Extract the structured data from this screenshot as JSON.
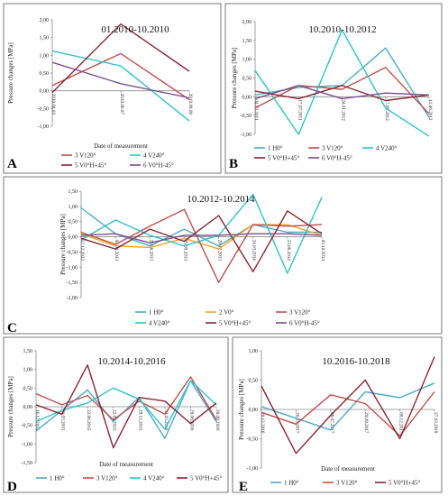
{
  "colors": {
    "H0": "#4bacc6",
    "V0": "#f5a623",
    "V120": "#c0504d",
    "V240": "#2fc3c8",
    "V0H45": "#8b2630",
    "V0Hm45": "#7a4f8c"
  },
  "chart_data": [
    {
      "id": "A",
      "type": "line",
      "letter": "A",
      "title": "01.2010-10.2010",
      "ylabel": "Pressure changes [MPa]",
      "xlabel": "Date of measurement",
      "ylim": [
        -1.0,
        2.0
      ],
      "yticks": [
        "2,00",
        "1,50",
        "1,00",
        "0,50",
        "0,00",
        "-0,50",
        "-1,00"
      ],
      "ytick_values": [
        2.0,
        1.5,
        1.0,
        0.5,
        0.0,
        -0.5,
        -1.0
      ],
      "categories": [
        "2010.04.03",
        "2010.06.07",
        "2010.09.08"
      ],
      "series": [
        {
          "name": "3 V120°",
          "color": "V120",
          "values": [
            0.15,
            1.05,
            -0.25
          ],
          "x": [
            0,
            1,
            2
          ]
        },
        {
          "name": "4 V240°",
          "color": "V240",
          "values": [
            1.12,
            0.7,
            -0.85
          ],
          "x": [
            0,
            1,
            2
          ]
        },
        {
          "name": "5 V0°H+45°",
          "color": "V0H45",
          "values": [
            -0.05,
            1.88,
            0.55
          ],
          "x": [
            0,
            1,
            2
          ]
        },
        {
          "name": "6 V0°H-45°",
          "color": "V0Hm45",
          "values": [
            0.8,
            0.2,
            -0.2
          ],
          "x": [
            0,
            1,
            2
          ]
        }
      ],
      "legend": [
        "3 V120°",
        "4 V240°",
        "5 V0°H+45°",
        "6 V0°H-45°"
      ]
    },
    {
      "id": "B",
      "type": "line",
      "letter": "B",
      "title": "10.2010-10.2012",
      "ylabel": "Pressure changes [MPa]",
      "xlabel": "",
      "ylim": [
        -1.0,
        2.0
      ],
      "yticks": [
        "2,00",
        "1,50",
        "1,00",
        "0,50",
        "0,00",
        "-0,50",
        "-1,00"
      ],
      "ytick_values": [
        2.0,
        1.5,
        1.0,
        0.5,
        0.0,
        -0.5,
        -1.0
      ],
      "categories": [
        "04.03.2011",
        "17.07.2011",
        "24.01.2012",
        "17.05.2012",
        "11.06.2012"
      ],
      "series": [
        {
          "name": "1 H0°",
          "color": "H0",
          "values": [
            0.05,
            0.25,
            0.3,
            1.3,
            -0.55
          ]
        },
        {
          "name": "3 V120°",
          "color": "V120",
          "values": [
            -0.3,
            0.3,
            0.2,
            0.78,
            -0.45
          ]
        },
        {
          "name": "4 V240°",
          "color": "V240",
          "values": [
            0.7,
            -1.0,
            1.78,
            -0.3,
            -1.05
          ]
        },
        {
          "name": "5 V0°H+45°",
          "color": "V0H45",
          "values": [
            0.15,
            -0.05,
            0.3,
            -0.1,
            0.05
          ]
        },
        {
          "name": "6 V0°H-45°",
          "color": "V0Hm45",
          "values": [
            -0.05,
            0.3,
            -0.05,
            0.1,
            0.05
          ]
        }
      ],
      "legend": [
        "1 H0°",
        "3 V120°",
        "4 V240°",
        "5 V0°H+45°",
        "6 V0°H-45°"
      ]
    },
    {
      "id": "C",
      "type": "line",
      "letter": "C",
      "title": "10.2012-10.2014",
      "ylabel": "Pressure changes [MPa]",
      "xlabel": "Date of measurement",
      "ylim": [
        -2.0,
        1.5
      ],
      "yticks": [
        "1,50",
        "1,00",
        "0,50",
        "0,00",
        "-0,50",
        "-1,00",
        "-1,50",
        "-2,00"
      ],
      "ytick_values": [
        1.5,
        1.0,
        0.5,
        0.0,
        -0.5,
        -1.0,
        -1.5,
        -2.0
      ],
      "categories": [
        "12.12.2012",
        "04.04.2013",
        "25.06.2013",
        "25.09.2013",
        "20.12.2013",
        "24.03.2014",
        "23.06.2014",
        "03.10.2014"
      ],
      "series": [
        {
          "name": "1 H0°",
          "color": "H0",
          "values": [
            0.95,
            0.1,
            -0.3,
            0.25,
            -0.3,
            0.4,
            0.15,
            0.15
          ]
        },
        {
          "name": "2 V0°",
          "color": "V0",
          "values": [
            0.1,
            -0.3,
            -0.35,
            -0.05,
            -0.4,
            0.4,
            0.4,
            0.05
          ]
        },
        {
          "name": "3 V120°",
          "color": "V120",
          "values": [
            0.15,
            -0.25,
            0.35,
            0.9,
            -1.5,
            0.4,
            0.35,
            0.4
          ]
        },
        {
          "name": "4 V240°",
          "color": "V240",
          "values": [
            -0.1,
            0.55,
            0.05,
            -0.3,
            0.05,
            1.4,
            -1.2,
            1.3
          ]
        },
        {
          "name": "5 V0°H+45°",
          "color": "V0H45",
          "values": [
            -0.05,
            -0.4,
            0.25,
            -0.15,
            0.7,
            -1.15,
            0.85,
            0.1
          ]
        },
        {
          "name": "6 V0°H-45°",
          "color": "V0Hm45",
          "values": [
            0.05,
            0.1,
            -0.2,
            0.05,
            0.05,
            0.1,
            0.1,
            0.05
          ]
        }
      ],
      "legend": [
        "1 H0°",
        "2 V0°",
        "3 V120°",
        "4 V240°",
        "5 V0°H+45°",
        "6 V0°H-45°"
      ]
    },
    {
      "id": "D",
      "type": "line",
      "letter": "D",
      "title": "10.2014-10.2016",
      "ylabel": "Pressure changes [MPa]",
      "xlabel": "Date of measurement",
      "ylim": [
        -1.5,
        1.5
      ],
      "yticks": [
        "1,50",
        "1,00",
        "0,50",
        "0,00",
        "-0,50",
        "-1,00",
        "-1,50"
      ],
      "ytick_values": [
        1.5,
        1.0,
        0.5,
        0.0,
        -0.5,
        -1.0,
        -1.5
      ],
      "categories": [
        "16.12.2014",
        "26.03.2015",
        "22.06.2015",
        "22.09.2015",
        "29.12.2015",
        "30.03.2016",
        "28.06.2016",
        "28.09.2016"
      ],
      "series": [
        {
          "name": "1 H0°",
          "color": "H0",
          "values": [
            -0.65,
            -0.1,
            0.45,
            -0.4,
            0.25,
            -0.85,
            0.7,
            -0.4
          ]
        },
        {
          "name": "3 V120°",
          "color": "V120",
          "values": [
            0.35,
            0.05,
            0.3,
            -0.35,
            0.15,
            -0.2,
            0.8,
            -0.35
          ]
        },
        {
          "name": "4 V240°",
          "color": "V240",
          "values": [
            -0.4,
            -0.1,
            0.1,
            0.5,
            0.2,
            -0.6,
            0.7,
            0.05
          ]
        },
        {
          "name": "5 V0°H+45°",
          "color": "V0H45",
          "values": [
            0.05,
            -0.2,
            1.12,
            -1.1,
            0.25,
            0.15,
            -0.45,
            0.1
          ]
        }
      ],
      "legend": [
        "1 H0°",
        "3 V120°",
        "4 V240°",
        "5 V0°H+45°"
      ]
    },
    {
      "id": "E",
      "type": "line",
      "letter": "E",
      "title": "10.2016-10.2018",
      "ylabel": "Pressure changes [MPa]",
      "xlabel": "Date of measurement",
      "ylim": [
        -1.0,
        1.0
      ],
      "yticks": [
        "1,00",
        "0,50",
        "0,00",
        "-0,50",
        "-1,00"
      ],
      "ytick_values": [
        1.0,
        0.5,
        0.0,
        -0.5,
        -1.0
      ],
      "categories": [
        "28.12.2016",
        "28.03.2017",
        "06.07.2017",
        "29.09.2017",
        "08.12.2017",
        "27.03.2018"
      ],
      "series": [
        {
          "name": "1 H0°",
          "color": "H0",
          "values": [
            0.05,
            -0.15,
            -0.35,
            0.3,
            0.2,
            0.45
          ]
        },
        {
          "name": "3 V120°",
          "color": "V120",
          "values": [
            -0.05,
            -0.25,
            0.25,
            0.1,
            -0.45,
            0.3
          ]
        },
        {
          "name": "5 V0°H+45°",
          "color": "V0H45",
          "values": [
            0.4,
            -0.75,
            -0.1,
            0.5,
            -0.5,
            0.9
          ]
        }
      ],
      "legend": [
        "1 H0°",
        "3 V120°",
        "5 V0°H+45°"
      ]
    }
  ]
}
